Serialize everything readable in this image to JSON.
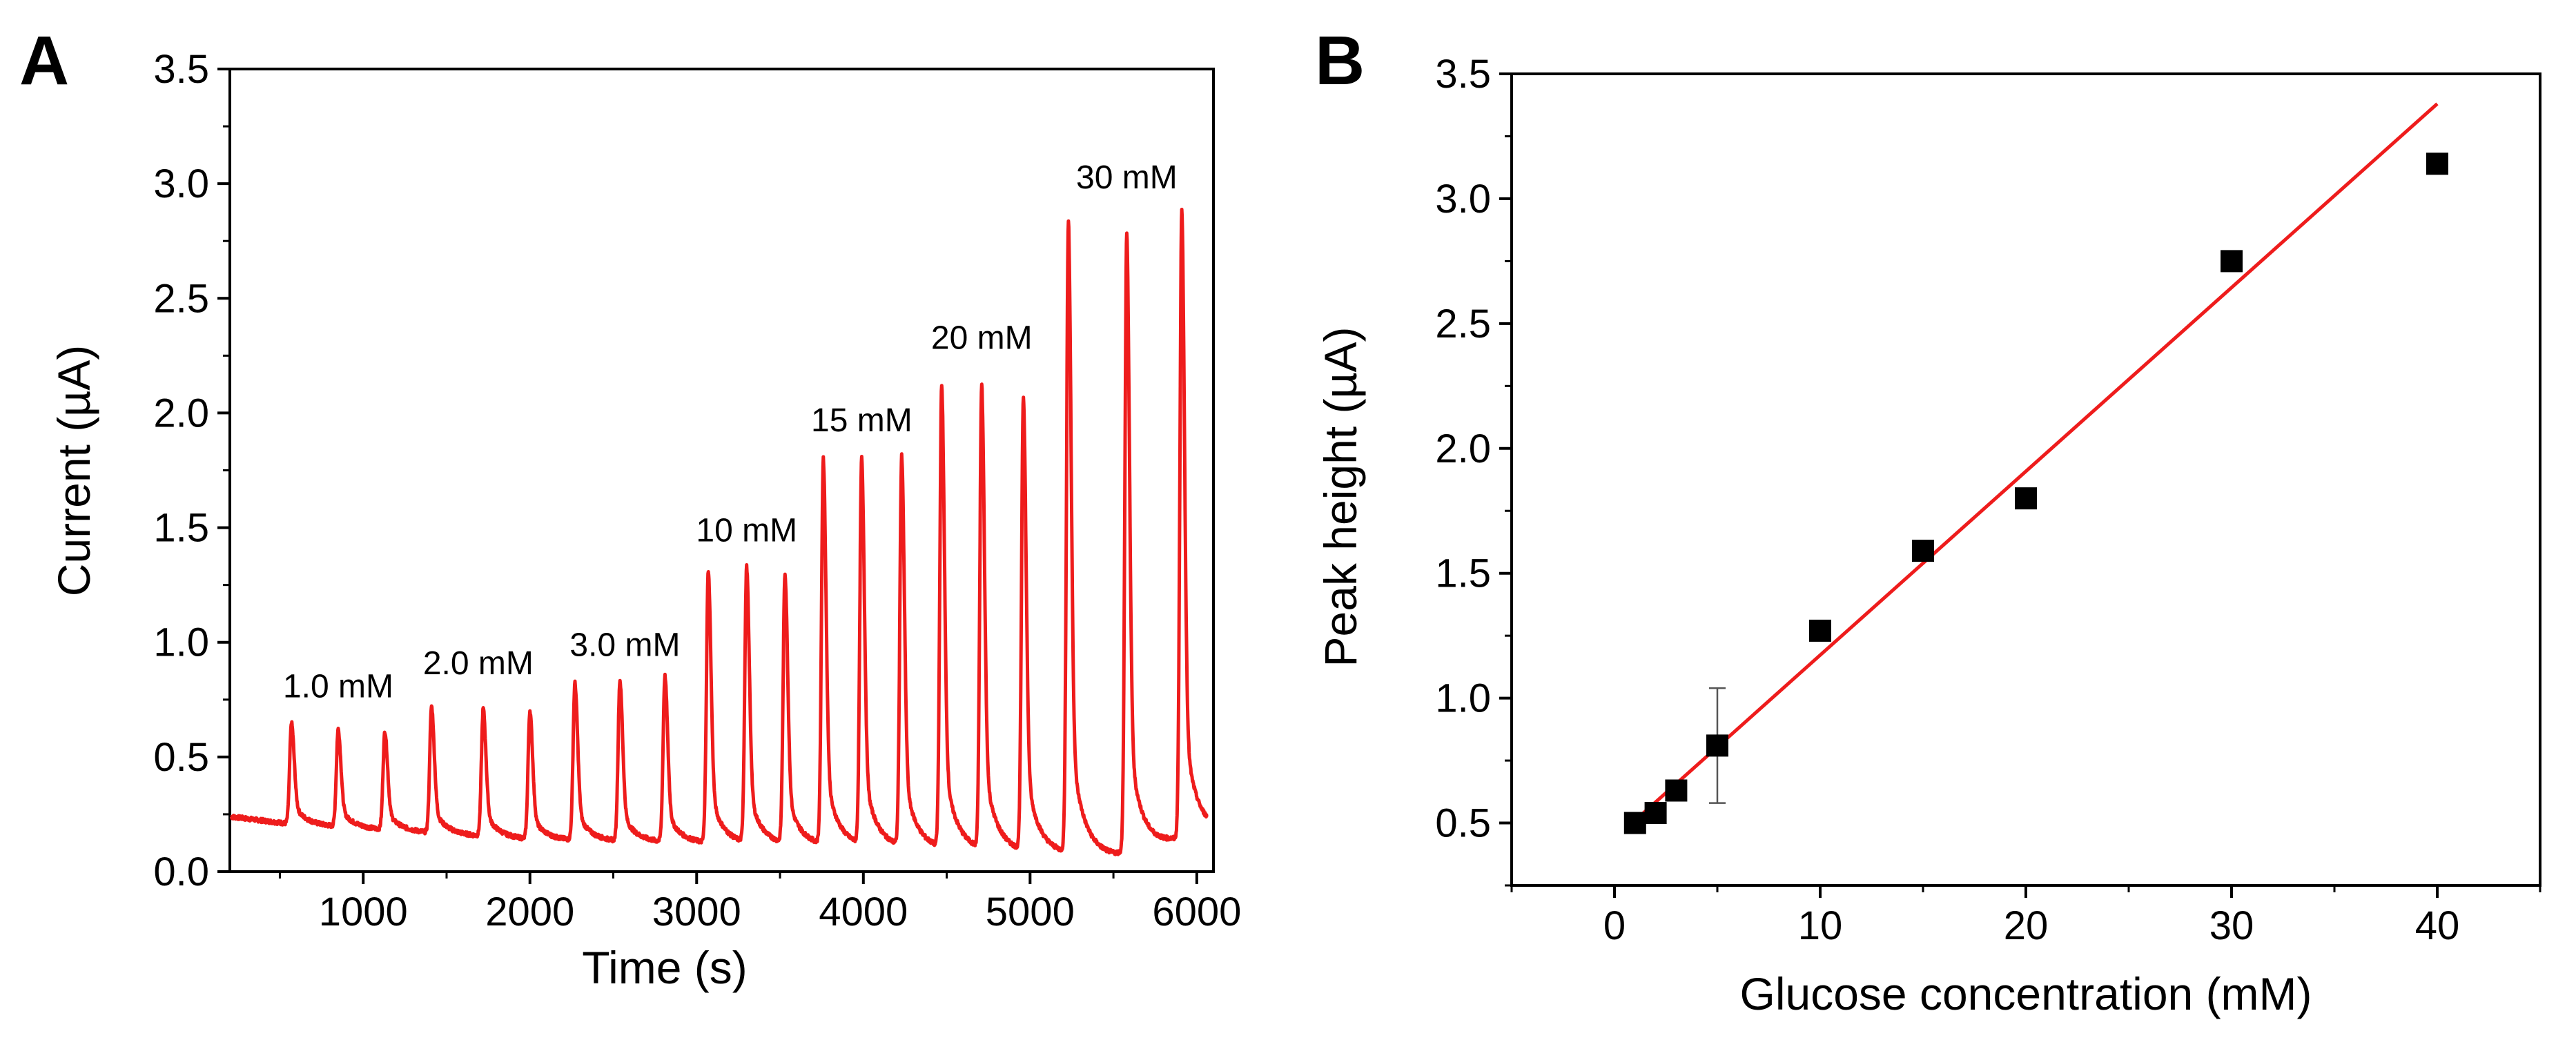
{
  "chart_data": [
    {
      "panel": "A",
      "type": "line",
      "title": "",
      "xlabel": "Time (s)",
      "ylabel": "Current (µA)",
      "xlim": [
        200,
        6100
      ],
      "ylim": [
        0,
        3.5
      ],
      "xticks": [
        1000,
        2000,
        3000,
        4000,
        5000,
        6000
      ],
      "yticks": [
        0.0,
        0.5,
        1.0,
        1.5,
        2.0,
        2.5,
        3.0,
        3.5
      ],
      "xtick_labels": [
        "1000",
        "2000",
        "3000",
        "4000",
        "5000",
        "6000"
      ],
      "ytick_labels": [
        "0.0",
        "0.5",
        "1.0",
        "1.5",
        "2.0",
        "2.5",
        "3.0",
        "3.5"
      ],
      "series_color": "#ee1c1c",
      "baseline": [
        {
          "t": 200,
          "y": 0.24
        },
        {
          "t": 540,
          "y": 0.21
        },
        {
          "t": 2000,
          "y": 0.14
        },
        {
          "t": 4000,
          "y": 0.11
        },
        {
          "t": 5500,
          "y": 0.07
        },
        {
          "t": 6060,
          "y": 0.17
        }
      ],
      "peaks": [
        {
          "t": 570,
          "y": 0.65
        },
        {
          "t": 850,
          "y": 0.62
        },
        {
          "t": 1130,
          "y": 0.61
        },
        {
          "t": 1410,
          "y": 0.72
        },
        {
          "t": 1720,
          "y": 0.71
        },
        {
          "t": 2000,
          "y": 0.7
        },
        {
          "t": 2270,
          "y": 0.82
        },
        {
          "t": 2540,
          "y": 0.83
        },
        {
          "t": 2810,
          "y": 0.85
        },
        {
          "t": 3070,
          "y": 1.31
        },
        {
          "t": 3300,
          "y": 1.32
        },
        {
          "t": 3530,
          "y": 1.29
        },
        {
          "t": 3760,
          "y": 1.79
        },
        {
          "t": 3990,
          "y": 1.79
        },
        {
          "t": 4230,
          "y": 1.8
        },
        {
          "t": 4470,
          "y": 2.11
        },
        {
          "t": 4710,
          "y": 2.11
        },
        {
          "t": 4960,
          "y": 2.06
        },
        {
          "t": 5230,
          "y": 2.83
        },
        {
          "t": 5580,
          "y": 2.78
        },
        {
          "t": 5910,
          "y": 2.88
        }
      ],
      "annotations": [
        {
          "text": "1.0 mM",
          "x": 850,
          "y": 0.76
        },
        {
          "text": "2.0 mM",
          "x": 1690,
          "y": 0.86
        },
        {
          "text": "3.0 mM",
          "x": 2570,
          "y": 0.94
        },
        {
          "text": "10 mM",
          "x": 3300,
          "y": 1.44
        },
        {
          "text": "15 mM",
          "x": 3990,
          "y": 1.92
        },
        {
          "text": "20 mM",
          "x": 4710,
          "y": 2.28
        },
        {
          "text": "30 mM",
          "x": 5580,
          "y": 2.98
        }
      ]
    },
    {
      "panel": "B",
      "type": "scatter",
      "title": "",
      "xlabel": "Glucose concentration (mM)",
      "ylabel": "Peak height (µA)",
      "xlim": [
        -5,
        45
      ],
      "ylim": [
        0.25,
        3.5
      ],
      "xticks": [
        0,
        10,
        20,
        30,
        40
      ],
      "yticks": [
        0.5,
        1.0,
        1.5,
        2.0,
        2.5,
        3.0,
        3.5
      ],
      "xtick_labels": [
        "0",
        "10",
        "20",
        "30",
        "40"
      ],
      "ytick_labels": [
        "0.5",
        "1.0",
        "1.5",
        "2.0",
        "2.5",
        "3.0",
        "3.5"
      ],
      "points": [
        {
          "x": 1,
          "y": 0.5,
          "err": 0
        },
        {
          "x": 2,
          "y": 0.54,
          "err": 0
        },
        {
          "x": 3,
          "y": 0.63,
          "err": 0
        },
        {
          "x": 5,
          "y": 0.81,
          "err": 0.23
        },
        {
          "x": 10,
          "y": 1.27,
          "err": 0
        },
        {
          "x": 15,
          "y": 1.59,
          "err": 0
        },
        {
          "x": 20,
          "y": 1.8,
          "err": 0
        },
        {
          "x": 30,
          "y": 2.75,
          "err": 0
        },
        {
          "x": 40,
          "y": 3.14,
          "err": 0
        }
      ],
      "fit": {
        "x": [
          1,
          40
        ],
        "y": [
          0.51,
          3.38
        ],
        "color": "#ee1c1c"
      }
    }
  ]
}
